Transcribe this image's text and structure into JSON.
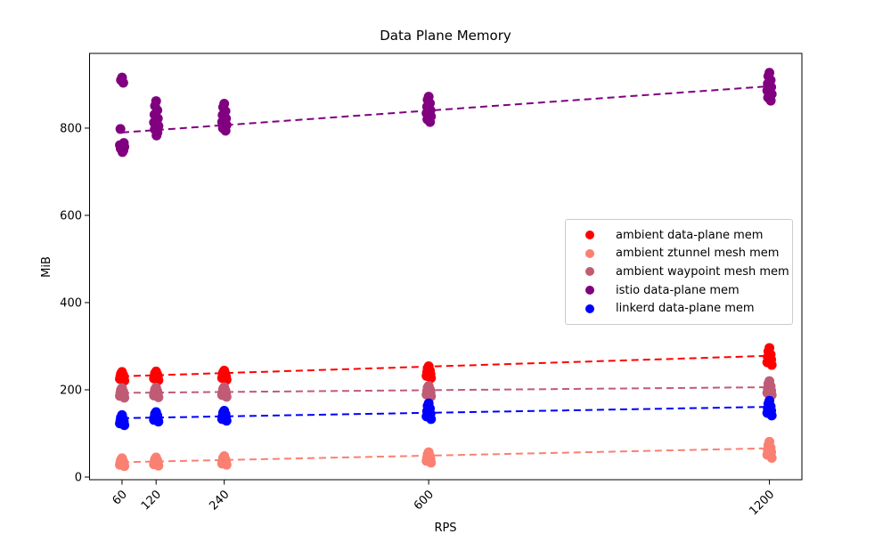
{
  "figure": {
    "background": "#ffffff",
    "text_color": "#000000"
  },
  "chart_data": {
    "type": "scatter",
    "title": "Data Plane Memory",
    "xlabel": "RPS",
    "ylabel": "MiB",
    "x_ticks": [
      60,
      120,
      240,
      600,
      1200
    ],
    "y_ticks": [
      0,
      200,
      400,
      600,
      800
    ],
    "xlim": [
      2.8,
      1257.2
    ],
    "ylim": [
      -6.1,
      971.3
    ],
    "grid": false,
    "legend_position": "center-right",
    "marker_radius": 5.5,
    "trend_line_style": "dashed",
    "series": [
      {
        "name": "ambient data-plane mem",
        "color": "#ff0000",
        "points": [
          {
            "x": 60,
            "values": [
              221,
              225,
              228,
              231,
              234,
              237,
              241
            ]
          },
          {
            "x": 120,
            "values": [
              222,
              226,
              229,
              232,
              235,
              238,
              242
            ]
          },
          {
            "x": 240,
            "values": [
              223,
              227,
              230,
              233,
              236,
              240,
              244
            ]
          },
          {
            "x": 600,
            "values": [
              227,
              232,
              236,
              240,
              244,
              249,
              254
            ]
          },
          {
            "x": 1200,
            "values": [
              257,
              263,
              269,
              275,
              281,
              288,
              296
            ]
          }
        ],
        "trend": {
          "x": [
            60,
            1200
          ],
          "y": [
            231,
            278
          ]
        }
      },
      {
        "name": "ambient ztunnel mesh mem",
        "color": "#fa8072",
        "points": [
          {
            "x": 60,
            "values": [
              25,
              28,
              31,
              34,
              36,
              39,
              43
            ]
          },
          {
            "x": 120,
            "values": [
              26,
              29,
              32,
              35,
              38,
              41,
              45
            ]
          },
          {
            "x": 240,
            "values": [
              28,
              31,
              34,
              37,
              40,
              44,
              48
            ]
          },
          {
            "x": 600,
            "values": [
              33,
              37,
              41,
              44,
              48,
              52,
              57
            ]
          },
          {
            "x": 1200,
            "values": [
              44,
              51,
              57,
              62,
              67,
              73,
              81
            ]
          }
        ],
        "trend": {
          "x": [
            60,
            1200
          ],
          "y": [
            34,
            66
          ]
        }
      },
      {
        "name": "ambient waypoint mesh mem",
        "color": "#c05b76",
        "points": [
          {
            "x": 60,
            "values": [
              182,
              186,
              189,
              193,
              196,
              200,
              204
            ]
          },
          {
            "x": 120,
            "values": [
              183,
              187,
              190,
              194,
              197,
              201,
              205
            ]
          },
          {
            "x": 240,
            "values": [
              184,
              188,
              191,
              195,
              198,
              202,
              206
            ]
          },
          {
            "x": 600,
            "values": [
              185,
              189,
              193,
              197,
              201,
              205,
              209
            ]
          },
          {
            "x": 1200,
            "values": [
              188,
              193,
              198,
              203,
              208,
              214,
              220
            ]
          }
        ],
        "trend": {
          "x": [
            60,
            1200
          ],
          "y": [
            193,
            206
          ]
        }
      },
      {
        "name": "istio data-plane mem",
        "color": "#800080",
        "points": [
          {
            "x": 60,
            "values": [
              745,
              749,
              753,
              757,
              761,
              766,
              798,
              904,
              910,
              916
            ]
          },
          {
            "x": 120,
            "values": [
              783,
              790,
              797,
              805,
              813,
              822,
              831,
              841,
              851,
              862
            ]
          },
          {
            "x": 240,
            "values": [
              794,
              800,
              807,
              814,
              822,
              830,
              839,
              848,
              856
            ]
          },
          {
            "x": 600,
            "values": [
              814,
              820,
              827,
              834,
              841,
              849,
              857,
              865,
              872
            ]
          },
          {
            "x": 1200,
            "values": [
              863,
              870,
              878,
              886,
              894,
              902,
              910,
              919,
              927
            ]
          }
        ],
        "trend": {
          "x": [
            60,
            1200
          ],
          "y": [
            790,
            896
          ]
        }
      },
      {
        "name": "linkerd data-plane mem",
        "color": "#0000ff",
        "points": [
          {
            "x": 60,
            "values": [
              119,
              123,
              127,
              130,
              133,
              137,
              142
            ]
          },
          {
            "x": 120,
            "values": [
              127,
              131,
              134,
              137,
              141,
              145,
              149
            ]
          },
          {
            "x": 240,
            "values": [
              129,
              133,
              137,
              140,
              144,
              148,
              152
            ]
          },
          {
            "x": 600,
            "values": [
              133,
              139,
              145,
              151,
              157,
              163,
              169
            ]
          },
          {
            "x": 1200,
            "values": [
              141,
              147,
              152,
              157,
              162,
              168,
              175
            ]
          }
        ],
        "trend": {
          "x": [
            60,
            1200
          ],
          "y": [
            135,
            161
          ]
        }
      }
    ]
  }
}
